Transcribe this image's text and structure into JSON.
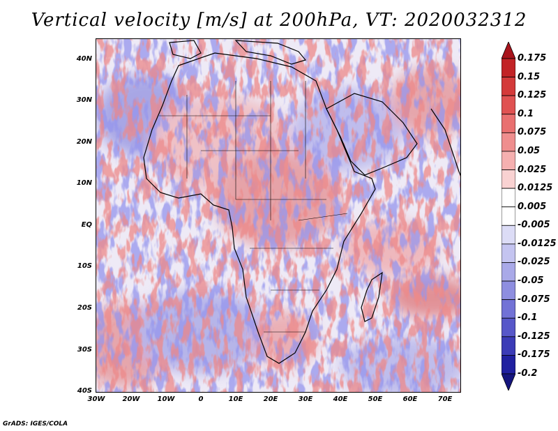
{
  "title": "Vertical velocity [m/s] at 200hPa, VT: 2020032312",
  "credit": "GrADS: IGES/COLA",
  "lat_ticks": [
    "40N",
    "30N",
    "20N",
    "10N",
    "EQ",
    "10S",
    "20S",
    "30S",
    "40S"
  ],
  "lon_ticks": [
    "30W",
    "20W",
    "10W",
    "0",
    "10E",
    "20E",
    "30E",
    "40E",
    "50E",
    "60E",
    "70E"
  ],
  "colorbar": {
    "labels": [
      "0.175",
      "0.15",
      "0.125",
      "0.1",
      "0.075",
      "0.05",
      "0.025",
      "0.0125",
      "0.005",
      "-0.005",
      "-0.0125",
      "-0.025",
      "-0.05",
      "-0.075",
      "-0.1",
      "-0.125",
      "-0.175",
      "-0.2"
    ],
    "colors": [
      "#a8141c",
      "#c22326",
      "#d43a3a",
      "#e05252",
      "#e97070",
      "#ef8e8e",
      "#f5b0b0",
      "#f9d2d2",
      "#ffffff",
      "#ffffff",
      "#dcdcf6",
      "#c4c4f0",
      "#a9a9e8",
      "#8e8ee0",
      "#7272d6",
      "#5757c9",
      "#3b3bb7",
      "#2020a0",
      "#15157e"
    ]
  },
  "colors": {
    "red": "#d43a3a",
    "blue": "#3b3bb7",
    "background": "#ffffff"
  }
}
